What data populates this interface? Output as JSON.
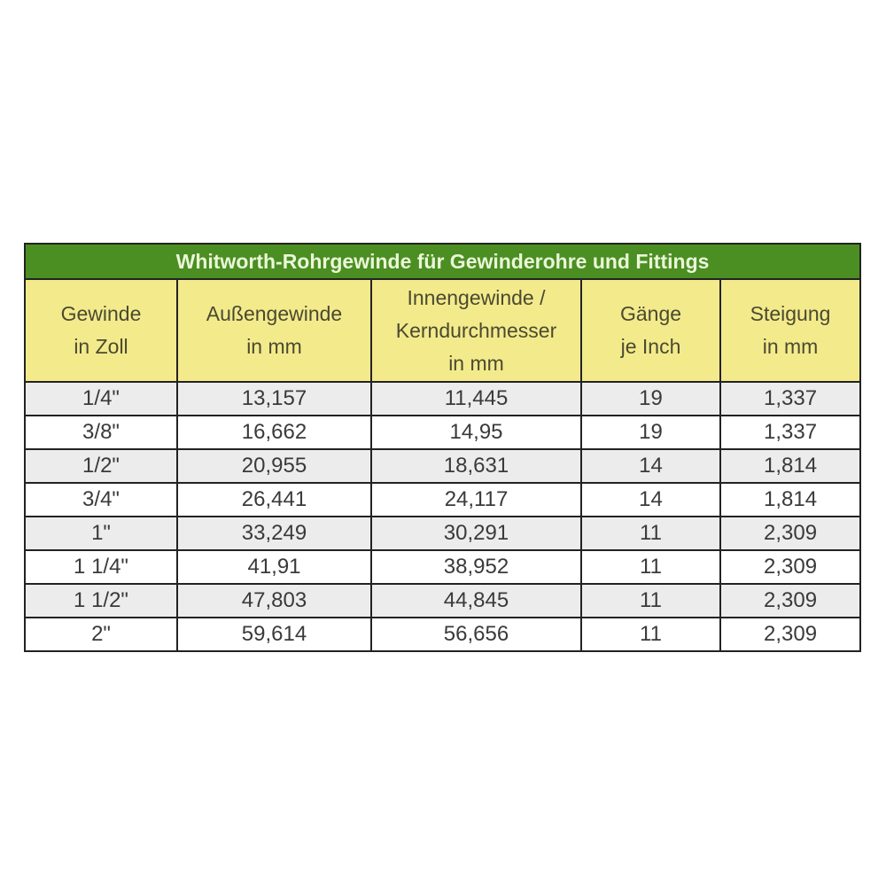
{
  "table": {
    "title": "Whitworth-Rohrgewinde für Gewinderohre und Fittings",
    "colors": {
      "title_bg": "#4b8e22",
      "header_bg": "#f3ea8c",
      "stripe_bg": "#ececec"
    },
    "headers": [
      [
        "Gewinde",
        "in Zoll"
      ],
      [
        "Außengewinde",
        "in mm"
      ],
      [
        "Innengewinde /",
        "Kerndurchmesser",
        "in mm"
      ],
      [
        "Gänge",
        "je Inch"
      ],
      [
        "Steigung",
        "in mm"
      ]
    ],
    "rows": [
      [
        "1/4\"",
        "13,157",
        "11,445",
        "19",
        "1,337"
      ],
      [
        "3/8\"",
        "16,662",
        "14,95",
        "19",
        "1,337"
      ],
      [
        "1/2\"",
        "20,955",
        "18,631",
        "14",
        "1,814"
      ],
      [
        "3/4\"",
        "26,441",
        "24,117",
        "14",
        "1,814"
      ],
      [
        "1\"",
        "33,249",
        "30,291",
        "11",
        "2,309"
      ],
      [
        "1 1/4\"",
        "41,91",
        "38,952",
        "11",
        "2,309"
      ],
      [
        "1 1/2\"",
        "47,803",
        "44,845",
        "11",
        "2,309"
      ],
      [
        "2\"",
        "59,614",
        "56,656",
        "11",
        "2,309"
      ]
    ]
  }
}
